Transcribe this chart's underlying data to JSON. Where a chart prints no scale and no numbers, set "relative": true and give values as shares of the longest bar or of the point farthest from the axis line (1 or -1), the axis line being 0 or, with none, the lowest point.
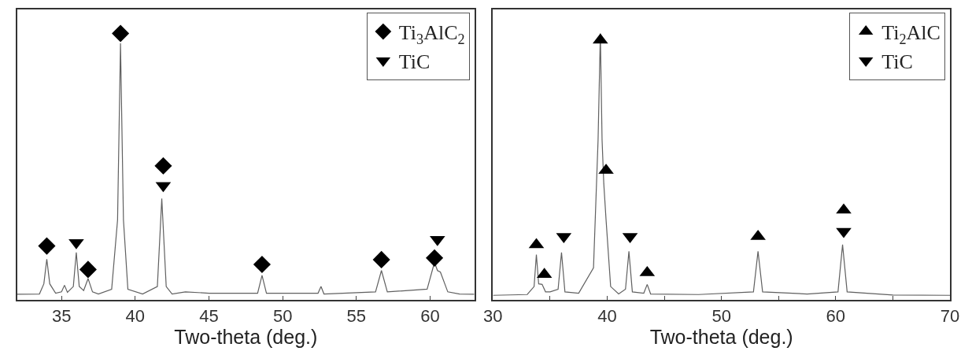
{
  "chart_data": [
    {
      "type": "line",
      "relative": true,
      "xlabel": "Two-theta (deg.)",
      "xlim": [
        32,
        63
      ],
      "xticks": [
        35,
        40,
        45,
        50,
        55,
        60
      ],
      "legend": "top right",
      "series": [
        {
          "color": "#606060",
          "marker": "none",
          "x": [
            32,
            33.5,
            33.8,
            34.0,
            34.2,
            34.6,
            35.0,
            35.2,
            35.4,
            35.8,
            36.0,
            36.2,
            36.5,
            36.8,
            37.1,
            37.5,
            38.4,
            38.8,
            39.0,
            39.2,
            39.5,
            40.5,
            41.5,
            41.8,
            42.1,
            42.5,
            43.4,
            45,
            48.3,
            48.6,
            48.9,
            52.4,
            52.6,
            52.8,
            56.3,
            56.7,
            57.1,
            59.8,
            60.3,
            60.5,
            60.7,
            61.2,
            62,
            63
          ],
          "values": [
            0.021,
            0.022,
            0.06,
            0.153,
            0.06,
            0.025,
            0.03,
            0.055,
            0.028,
            0.05,
            0.178,
            0.05,
            0.035,
            0.08,
            0.03,
            0.022,
            0.04,
            0.3,
            0.963,
            0.3,
            0.04,
            0.022,
            0.05,
            0.38,
            0.05,
            0.022,
            0.03,
            0.025,
            0.025,
            0.092,
            0.025,
            0.025,
            0.05,
            0.022,
            0.03,
            0.11,
            0.03,
            0.04,
            0.141,
            0.11,
            0.104,
            0.03,
            0.022,
            0.021
          ]
        },
        {
          "type": "scatter",
          "name": "Ti$_{3}$AlC$_{2}$",
          "color": "#000000",
          "marker": "diamond",
          "x": [
            34.0,
            36.8,
            39.0,
            41.9,
            48.6,
            56.7,
            60.3
          ],
          "values": [
            0.202,
            0.114,
            1.0,
            0.503,
            0.133,
            0.151,
            0.157
          ]
        },
        {
          "type": "scatter",
          "name": "TiC",
          "color": "#000000",
          "marker": "triangle-down",
          "x": [
            36.0,
            41.9,
            60.5
          ],
          "values": [
            0.215,
            0.429,
            0.227
          ]
        }
      ]
    },
    {
      "type": "line",
      "relative": true,
      "xlabel": "Two-theta (deg.)",
      "xlim": [
        30,
        70
      ],
      "xticks": [
        30,
        {
          "value": 35,
          "label": null
        },
        40,
        {
          "value": 45,
          "label": null
        },
        50,
        {
          "value": 55,
          "label": null
        },
        60,
        {
          "value": 65,
          "label": null
        },
        70
      ],
      "legend": "top right",
      "series": [
        {
          "color": "#606060",
          "marker": "none",
          "x": [
            30,
            33.0,
            33.6,
            33.8,
            34.0,
            34.3,
            34.6,
            35.0,
            35.7,
            36.0,
            36.3,
            37.5,
            38.8,
            39.2,
            39.4,
            39.55,
            39.7,
            39.9,
            40.3,
            41.0,
            41.6,
            41.9,
            42.2,
            43.2,
            43.5,
            43.8,
            48,
            52.8,
            53.2,
            53.6,
            57.5,
            60.2,
            60.6,
            61.0,
            65,
            70
          ],
          "values": [
            0.017,
            0.02,
            0.05,
            0.17,
            0.06,
            0.058,
            0.03,
            0.03,
            0.04,
            0.178,
            0.03,
            0.025,
            0.12,
            0.6,
            1.0,
            0.6,
            0.436,
            0.3,
            0.05,
            0.022,
            0.04,
            0.182,
            0.03,
            0.025,
            0.058,
            0.022,
            0.02,
            0.03,
            0.182,
            0.03,
            0.022,
            0.03,
            0.207,
            0.03,
            0.018,
            0.017
          ]
        },
        {
          "type": "scatter",
          "name": "Ti$_{2}$AlC",
          "color": "#000000",
          "marker": "triangle",
          "x": [
            33.8,
            34.5,
            39.4,
            39.9,
            43.5,
            53.2,
            60.7
          ],
          "values": [
            0.207,
            0.095,
            0.975,
            0.486,
            0.102,
            0.238,
            0.337
          ]
        },
        {
          "type": "scatter",
          "name": "TiC",
          "color": "#000000",
          "marker": "triangle-down",
          "x": [
            36.2,
            42.0,
            60.7
          ],
          "values": [
            0.238,
            0.238,
            0.257
          ]
        }
      ]
    }
  ]
}
